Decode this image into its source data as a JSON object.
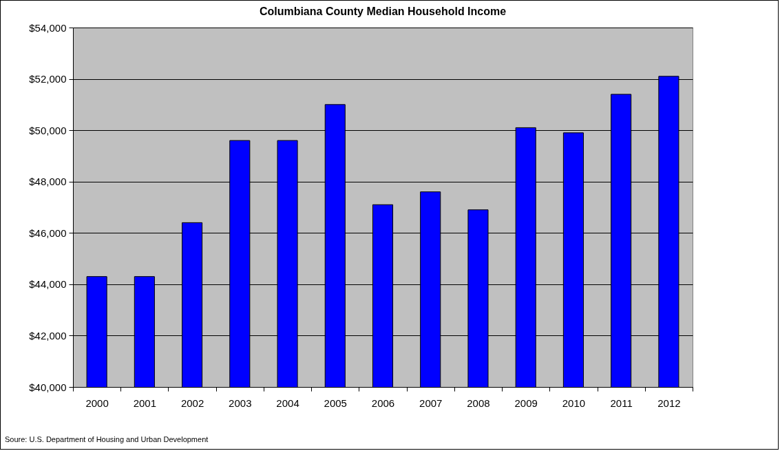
{
  "chart_data": {
    "type": "bar",
    "title": "Columbiana County Median Household Income",
    "categories": [
      "2000",
      "2001",
      "2002",
      "2003",
      "2004",
      "2005",
      "2006",
      "2007",
      "2008",
      "2009",
      "2010",
      "2011",
      "2012"
    ],
    "values": [
      44300,
      44300,
      46400,
      49600,
      49600,
      51000,
      47100,
      47600,
      46900,
      50100,
      49900,
      51400,
      52100
    ],
    "color": "#0000ff",
    "ylim": [
      40000,
      54000
    ],
    "yticks": [
      {
        "value": 40000,
        "label": "$40,000"
      },
      {
        "value": 42000,
        "label": "$42,000"
      },
      {
        "value": 44000,
        "label": "$44,000"
      },
      {
        "value": 46000,
        "label": "$46,000"
      },
      {
        "value": 48000,
        "label": "$48,000"
      },
      {
        "value": 50000,
        "label": "$50,000"
      },
      {
        "value": 52000,
        "label": "$52,000"
      },
      {
        "value": 54000,
        "label": "$54,000"
      }
    ],
    "grid": "y",
    "annotations": [
      "Soure: U.S. Department of Housing and Urban Development"
    ]
  }
}
